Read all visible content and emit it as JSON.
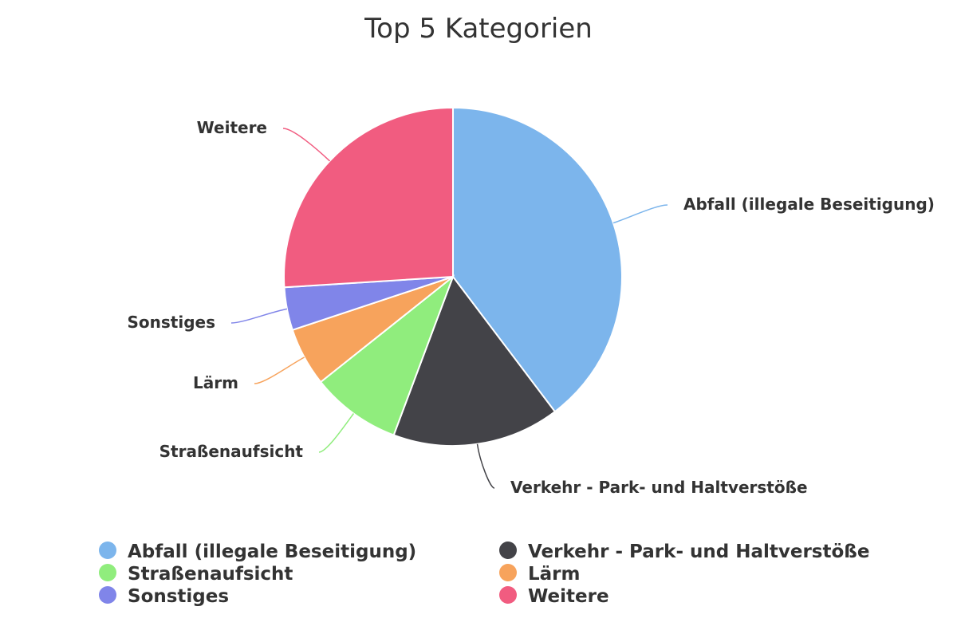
{
  "chart_data": {
    "type": "pie",
    "title": "Top 5 Kategorien",
    "series": [
      {
        "name": "Abfall (illegale Beseitigung)",
        "value": 39.7,
        "color": "#7cb5ec"
      },
      {
        "name": "Verkehr - Park- und Haltverstöße",
        "value": 16.0,
        "color": "#434348"
      },
      {
        "name": "Straßenaufsicht",
        "value": 8.6,
        "color": "#90ed7d"
      },
      {
        "name": "Lärm",
        "value": 5.6,
        "color": "#f7a35c"
      },
      {
        "name": "Sonstiges",
        "value": 4.1,
        "color": "#8085e9"
      },
      {
        "name": "Weitere",
        "value": 26.0,
        "color": "#f15c80"
      }
    ],
    "legend_position": "bottom"
  }
}
